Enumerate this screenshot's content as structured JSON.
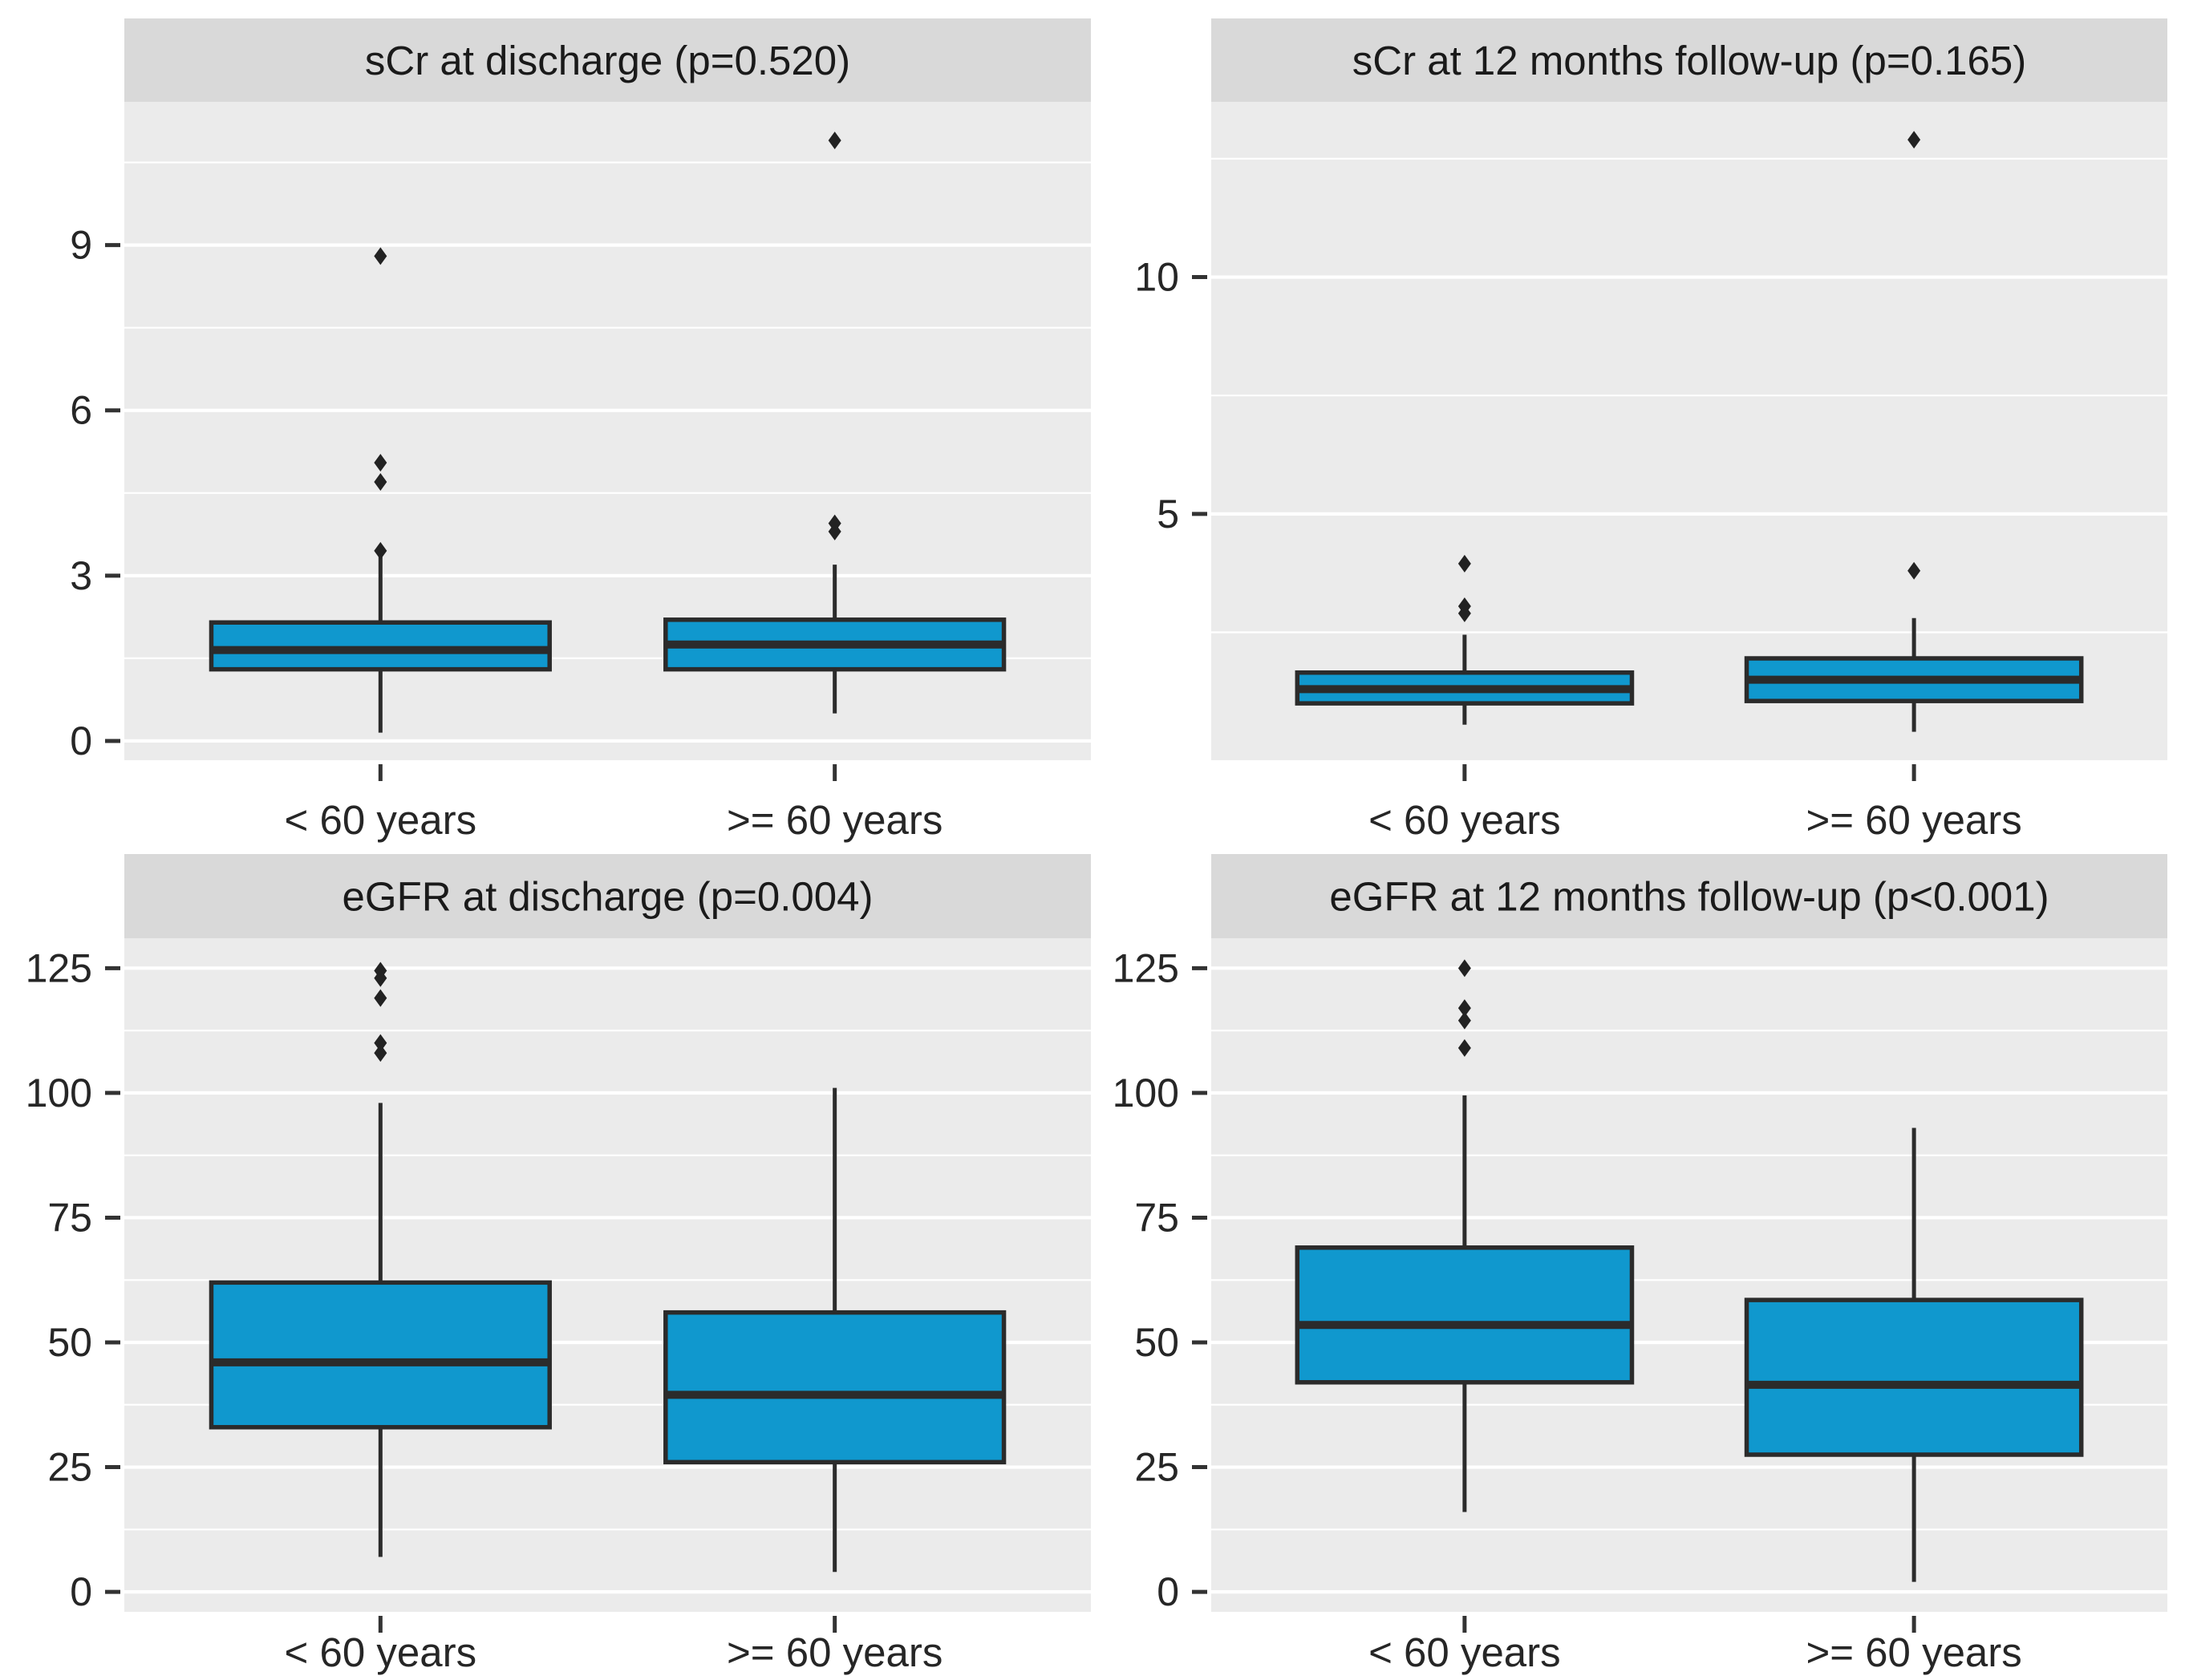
{
  "figure": {
    "background": "#FFFFFF",
    "categories": [
      "< 60 years",
      ">= 60 years"
    ]
  },
  "colors": {
    "panel_background": "#EBEBEB",
    "strip_background": "#D9D9D9",
    "gridline": "#FFFFFF",
    "box_fill": "#1098CE",
    "box_stroke": "#2B2B2B",
    "median_stroke": "#2B2B2B",
    "whisker_stroke": "#2B2B2B",
    "outlier_fill": "#222222",
    "tick_mark": "#333333",
    "axis_text": "#262626",
    "title_text": "#1A1A1A"
  },
  "chart_data": [
    {
      "type": "boxplot",
      "title": "sCr at discharge (p=0.520)",
      "p_value_label": "p=0.520",
      "categories": [
        "< 60 years",
        ">= 60 years"
      ],
      "xlabel": "",
      "ylabel": "",
      "ylim": [
        -0.35,
        11.6
      ],
      "y_ticks": [
        0,
        3,
        6,
        9
      ],
      "y_minor_gridlines": [
        1.5,
        4.5,
        7.5,
        10.5
      ],
      "grid": "on",
      "legend": "none",
      "series": [
        {
          "name": "< 60 years",
          "whisker_low": 0.15,
          "q1": 1.3,
          "median": 1.65,
          "q3": 2.15,
          "whisker_high": 3.45,
          "outliers": [
            3.45,
            4.7,
            5.05,
            8.8
          ]
        },
        {
          "name": ">= 60 years",
          "whisker_low": 0.5,
          "q1": 1.3,
          "median": 1.75,
          "q3": 2.2,
          "whisker_high": 3.2,
          "outliers": [
            3.8,
            3.95,
            10.9
          ]
        }
      ]
    },
    {
      "type": "boxplot",
      "title": "sCr at 12 months follow-up (p=0.165)",
      "p_value_label": "p=0.165",
      "categories": [
        "< 60 years",
        ">= 60 years"
      ],
      "xlabel": "",
      "ylabel": "",
      "ylim": [
        -0.2,
        13.7
      ],
      "y_ticks": [
        5,
        10
      ],
      "y_minor_gridlines": [
        2.5,
        7.5,
        12.5
      ],
      "grid": "on",
      "legend": "none",
      "series": [
        {
          "name": "< 60 years",
          "whisker_low": 0.55,
          "q1": 1.0,
          "median": 1.3,
          "q3": 1.65,
          "whisker_high": 2.45,
          "outliers": [
            2.9,
            3.05,
            3.95
          ]
        },
        {
          "name": ">= 60 years",
          "whisker_low": 0.4,
          "q1": 1.05,
          "median": 1.5,
          "q3": 1.95,
          "whisker_high": 2.8,
          "outliers": [
            3.8,
            12.9
          ]
        }
      ]
    },
    {
      "type": "boxplot",
      "title": "eGFR at discharge (p=0.004)",
      "p_value_label": "p=0.004",
      "categories": [
        "< 60 years",
        ">= 60 years"
      ],
      "xlabel": "",
      "ylabel": "",
      "ylim": [
        -4,
        131
      ],
      "y_ticks": [
        0,
        25,
        50,
        75,
        100,
        125
      ],
      "y_minor_gridlines": [
        12.5,
        37.5,
        62.5,
        87.5,
        112.5
      ],
      "grid": "on",
      "legend": "none",
      "series": [
        {
          "name": "< 60 years",
          "whisker_low": 7,
          "q1": 33,
          "median": 46,
          "q3": 62,
          "whisker_high": 98,
          "outliers": [
            108,
            110,
            119,
            123,
            124.5
          ]
        },
        {
          "name": ">= 60 years",
          "whisker_low": 4,
          "q1": 26,
          "median": 39.5,
          "q3": 56,
          "whisker_high": 101,
          "outliers": []
        }
      ]
    },
    {
      "type": "boxplot",
      "title": "eGFR at 12 months follow-up (p<0.001)",
      "p_value_label": "p<0.001",
      "categories": [
        "< 60 years",
        ">= 60 years"
      ],
      "xlabel": "",
      "ylabel": "",
      "ylim": [
        -4,
        131
      ],
      "y_ticks": [
        0,
        25,
        50,
        75,
        100,
        125
      ],
      "y_minor_gridlines": [
        12.5,
        37.5,
        62.5,
        87.5,
        112.5
      ],
      "grid": "on",
      "legend": "none",
      "series": [
        {
          "name": "< 60 years",
          "whisker_low": 16,
          "q1": 42,
          "median": 53.5,
          "q3": 69,
          "whisker_high": 99.5,
          "outliers": [
            109,
            114.5,
            117,
            125
          ]
        },
        {
          "name": ">= 60 years",
          "whisker_low": 2,
          "q1": 27.5,
          "median": 41.5,
          "q3": 58.5,
          "whisker_high": 93,
          "outliers": []
        }
      ]
    }
  ]
}
